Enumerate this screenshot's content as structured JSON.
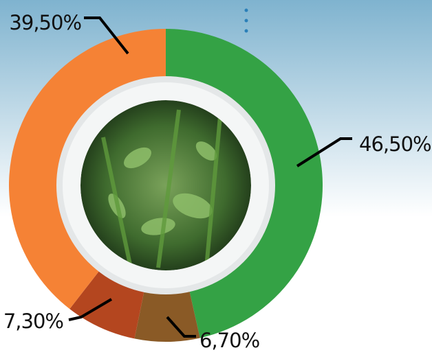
{
  "chart_data": {
    "type": "donut",
    "categories": [
      null,
      null,
      null,
      null
    ],
    "values": [
      46.5,
      6.7,
      7.3,
      39.5
    ],
    "value_labels": [
      "46,50%",
      "6,70%",
      "7,30%",
      "39,50%"
    ],
    "colors": [
      "#34a245",
      "#8a5a26",
      "#b4461f",
      "#f58235"
    ]
  }
}
